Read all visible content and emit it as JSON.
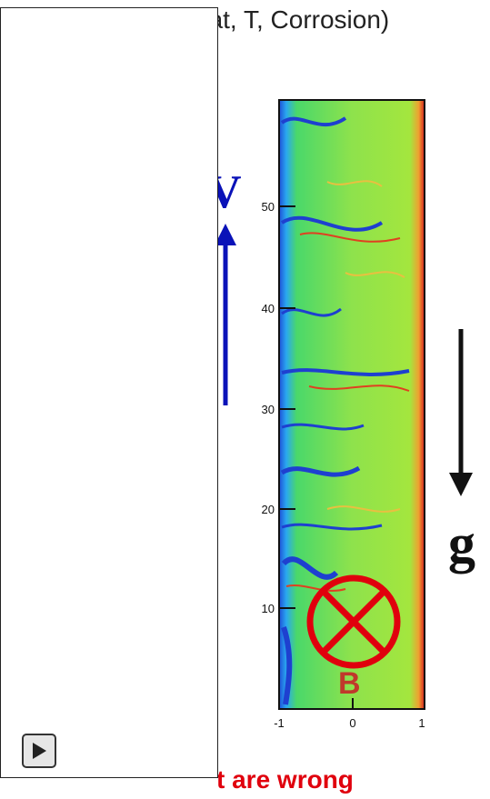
{
  "header": {
    "title_fragment": "eat, T, Corrosion)"
  },
  "footer": {
    "text_fragment": "t are wrong"
  },
  "figure": {
    "y_ticks": [
      "10",
      "20",
      "30",
      "40",
      "50"
    ],
    "x_ticks": [
      "-1",
      "0",
      "1"
    ],
    "velocity_label": "V",
    "gravity_label": "g",
    "field_label": "B"
  },
  "controls": {
    "play_icon": "play-icon"
  },
  "colors": {
    "velocity": "#0a12b8",
    "field_symbol": "#e0000d",
    "footer_text": "#e0000d",
    "field_map_base": "#7fe04a"
  }
}
